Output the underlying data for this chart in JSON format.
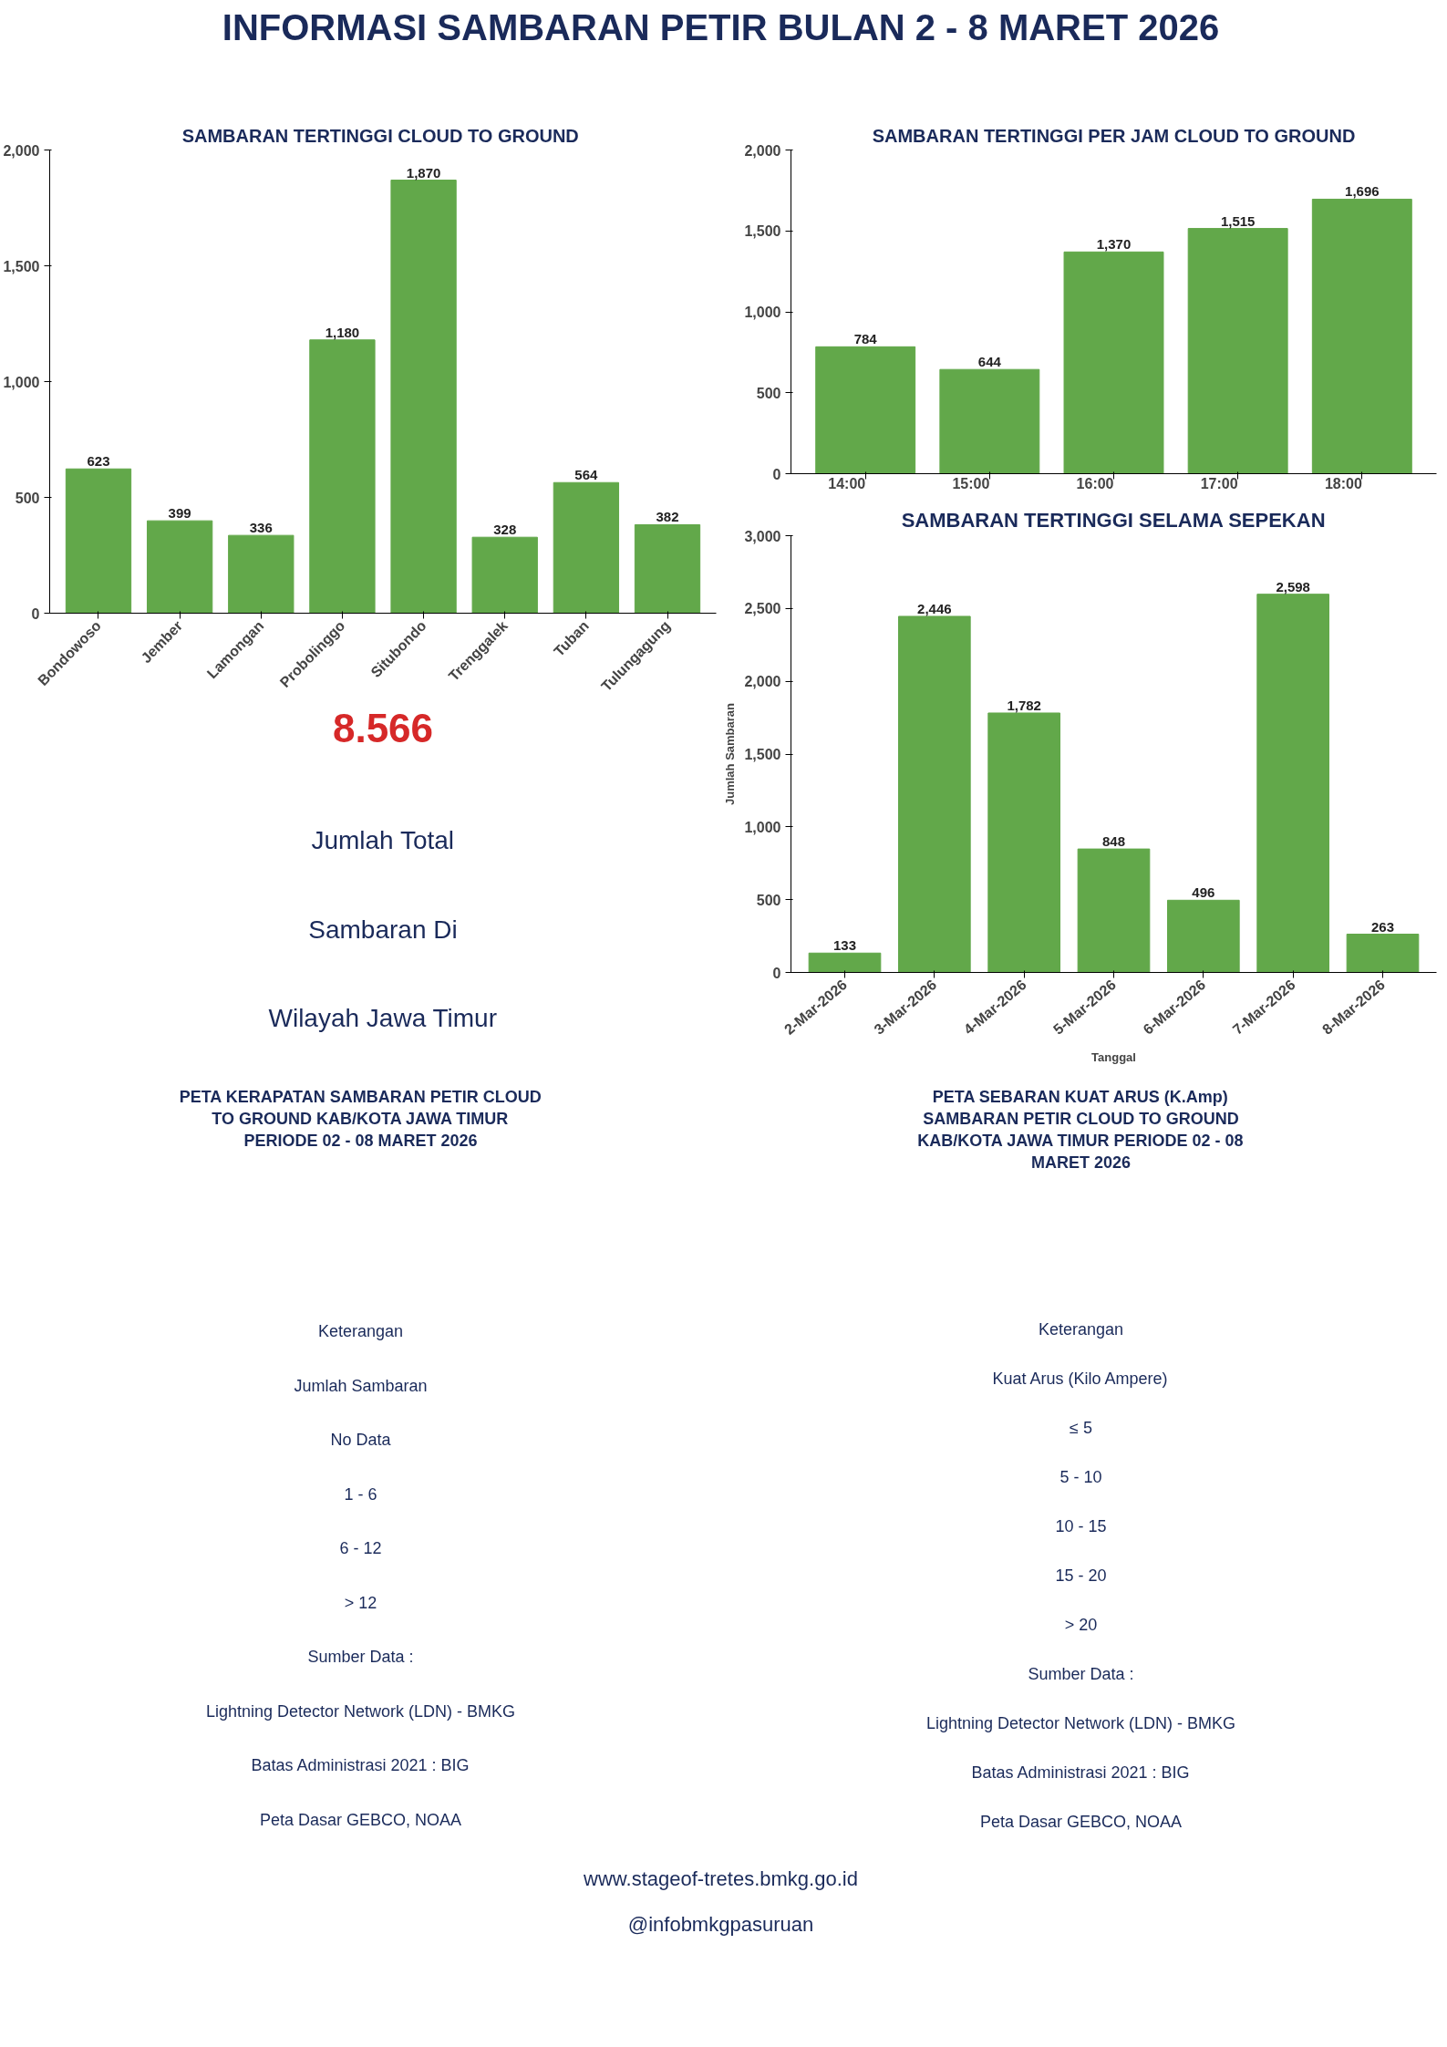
{
  "chart_data": [
    {
      "type": "other",
      "title": "INFORMASI SAMBARAN PETIR BULAN 2 - 8 MARET 2026"
    },
    {
      "type": "bar",
      "title": "SAMBARAN TERTINGGI  CLOUD TO GROUND",
      "categories": [
        "Bondowoso",
        "Jember",
        "Lamongan",
        "Probolinggo",
        "Situbondo",
        "Trenggalek",
        "Tuban",
        "Tulungagung"
      ],
      "values": [
        623,
        399,
        336,
        1180,
        1870,
        328,
        564,
        382
      ],
      "value_labels": [
        "623",
        "399",
        "336",
        "1,180",
        "1,870",
        "328",
        "564",
        "382"
      ],
      "color": "#62a84a",
      "ylim": [
        0,
        2000
      ],
      "yticks": [
        0,
        500,
        {
          "value": 1000,
          "label": "1,000"
        },
        {
          "value": 1500,
          "label": "1,500"
        },
        {
          "value": 2000,
          "label": "2,000"
        }
      ],
      "grid": false
    },
    {
      "type": "bar",
      "title": "SAMBARAN TERTINGGI PER JAM CLOUD TO GROUND",
      "categories": [
        "14:00",
        "15:00",
        "16:00",
        "17:00",
        "18:00"
      ],
      "values": [
        784,
        644,
        1370,
        1515,
        1696
      ],
      "value_labels": [
        "784",
        "644",
        "1,370",
        "1,515",
        "1,696"
      ],
      "color": "#62a84a",
      "ylim": [
        0,
        2000
      ],
      "yticks": [
        0,
        500,
        {
          "value": 1000,
          "label": "1,000"
        },
        {
          "value": 1500,
          "label": "1,500"
        },
        {
          "value": 2000,
          "label": "2,000"
        }
      ],
      "grid": false
    },
    {
      "type": "bar",
      "title": "SAMBARAN TERTINGGI SELAMA SEPEKAN",
      "categories": [
        "2-Mar-2026",
        "3-Mar-2026",
        "4-Mar-2026",
        "5-Mar-2026",
        "6-Mar-2026",
        "7-Mar-2026",
        "8-Mar-2026"
      ],
      "values": [
        133,
        2446,
        1782,
        848,
        496,
        2598,
        263
      ],
      "value_labels": [
        "133",
        "2,446",
        "1,782",
        "848",
        "496",
        "2,598",
        "263"
      ],
      "color": "#62a84a",
      "ylim": [
        0,
        3000
      ],
      "yticks": [
        0,
        500,
        {
          "value": 1000,
          "label": "1,000"
        },
        {
          "value": 1500,
          "label": "1,500"
        },
        {
          "value": 2000,
          "label": "2,000"
        },
        {
          "value": 2500,
          "label": "2,500"
        },
        {
          "value": 3000,
          "label": "3,000"
        }
      ],
      "xlabel": "Tanggal",
      "ylabel": "Jumlah Sambaran"
    },
    {
      "type": "other",
      "title": "8.566",
      "annotations": [
        "Jumlah Total",
        "Sambaran Di",
        "Wilayah Jawa Timur"
      ]
    },
    {
      "type": "other",
      "title": "PETA KERAPATAN SAMBARAN PETIR CLOUD TO GROUND KAB/KOTA JAWA TIMUR PERIODE 02 - 08 MARET 2026",
      "annotations": [
        "Keterangan",
        "Jumlah Sambaran",
        "No Data",
        "1 - 6",
        "6 - 12",
        "> 12",
        "Sumber Data :",
        "Lightning Detector Network (LDN) - BMKG",
        "Batas Administrasi 2021 : BIG",
        "Peta Dasar GEBCO, NOAA"
      ]
    },
    {
      "type": "other",
      "title": "PETA SEBARAN KUAT ARUS (K.Amp) SAMBARAN PETIR CLOUD TO GROUND KAB/KOTA JAWA TIMUR PERIODE 02 - 08 MARET 2026",
      "annotations": [
        "Keterangan",
        "Kuat Arus (Kilo Ampere)",
        "≤ 5",
        "5 - 10",
        "10 - 15",
        "15 - 20",
        "> 20",
        "Sumber Data :",
        "Lightning Detector Network (LDN) - BMKG",
        "Batas Administrasi 2021 : BIG",
        "Peta Dasar GEBCO, NOAA"
      ]
    },
    {
      "type": "other",
      "annotations": [
        "www.stageof-tretes.bmkg.go.id",
        "@infobmkgpasuruan"
      ]
    }
  ]
}
